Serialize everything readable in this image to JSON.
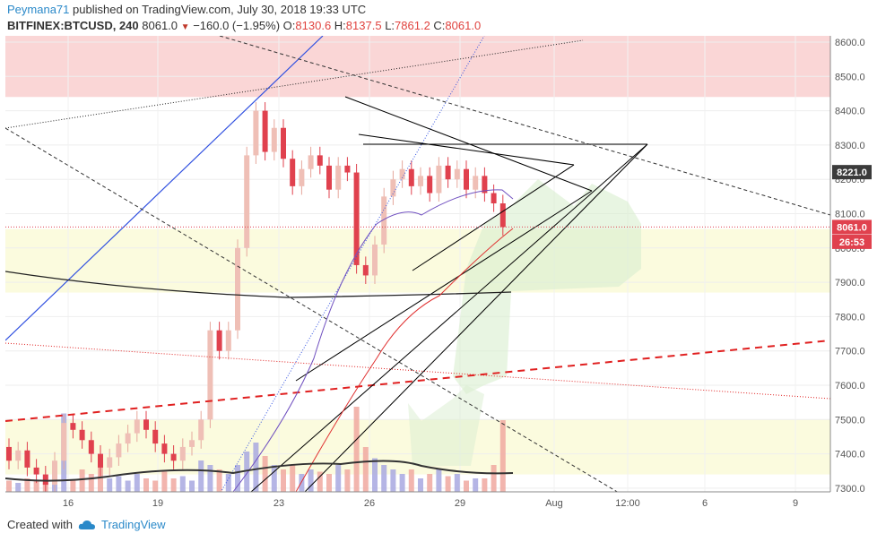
{
  "header": {
    "author": "Peymana71",
    "published_text": "published on TradingView.com, July 30, 2018 19:33 UTC",
    "symbol": "BITFINEX:BTCUSD, 240",
    "last": "8061.0",
    "change": "−160.0 (−1.95%)",
    "o_label": "O:",
    "o_value": "8130.6",
    "h_label": "H:",
    "h_value": "8137.5",
    "l_label": "L:",
    "l_value": "7861.2",
    "c_label": "C:",
    "c_value": "8061.0"
  },
  "footer": {
    "created_with": "Created with",
    "brand": "TradingView"
  },
  "colors": {
    "up": "#efbfb6",
    "down": "#e0414e",
    "resist_zone": "#f8c8c8",
    "support_zone": "#fbfbde",
    "price_label": "#e0414e",
    "ema_label": "#3b3b3b"
  },
  "chart_data": {
    "type": "candlestick",
    "y_axis_ticks": [
      "8600.0",
      "8500.0",
      "8400.0",
      "8300.0",
      "8200.0",
      "8100.0",
      "8000.0",
      "7900.0",
      "7800.0",
      "7700.0",
      "7600.0",
      "7500.0",
      "7400.0",
      "7300.0"
    ],
    "x_axis_ticks": [
      "16",
      "19",
      "23",
      "26",
      "29",
      "Aug",
      "12:00",
      "6",
      "9"
    ],
    "ylim": [
      7280,
      8630
    ],
    "price_labels": [
      {
        "text": "8221.0",
        "value": 8221,
        "kind": "ema"
      },
      {
        "text": "8061.0",
        "value": 8061,
        "kind": "price"
      },
      {
        "text": "26:53",
        "value": 8018,
        "kind": "timer"
      }
    ],
    "candles": [
      {
        "o": 7420,
        "c": 7380
      },
      {
        "o": 7380,
        "c": 7410
      },
      {
        "o": 7410,
        "c": 7360
      },
      {
        "o": 7360,
        "c": 7340
      },
      {
        "o": 7340,
        "c": 7310
      },
      {
        "o": 7310,
        "c": 7380
      },
      {
        "o": 7380,
        "c": 7490
      },
      {
        "o": 7490,
        "c": 7470
      },
      {
        "o": 7470,
        "c": 7440
      },
      {
        "o": 7440,
        "c": 7400
      },
      {
        "o": 7400,
        "c": 7360
      },
      {
        "o": 7360,
        "c": 7390
      },
      {
        "o": 7390,
        "c": 7430
      },
      {
        "o": 7430,
        "c": 7460
      },
      {
        "o": 7460,
        "c": 7500
      },
      {
        "o": 7500,
        "c": 7470
      },
      {
        "o": 7470,
        "c": 7430
      },
      {
        "o": 7430,
        "c": 7400
      },
      {
        "o": 7400,
        "c": 7380
      },
      {
        "o": 7380,
        "c": 7420
      },
      {
        "o": 7420,
        "c": 7440
      },
      {
        "o": 7440,
        "c": 7500
      },
      {
        "o": 7500,
        "c": 7760
      },
      {
        "o": 7760,
        "c": 7700
      },
      {
        "o": 7700,
        "c": 7760
      },
      {
        "o": 7760,
        "c": 8000
      },
      {
        "o": 8000,
        "c": 8270
      },
      {
        "o": 8270,
        "c": 8400
      },
      {
        "o": 8400,
        "c": 8280
      },
      {
        "o": 8280,
        "c": 8350
      },
      {
        "o": 8350,
        "c": 8260
      },
      {
        "o": 8260,
        "c": 8180
      },
      {
        "o": 8180,
        "c": 8230
      },
      {
        "o": 8230,
        "c": 8270
      },
      {
        "o": 8270,
        "c": 8240
      },
      {
        "o": 8240,
        "c": 8170
      },
      {
        "o": 8170,
        "c": 8240
      },
      {
        "o": 8240,
        "c": 8220
      },
      {
        "o": 8220,
        "c": 7950
      },
      {
        "o": 7950,
        "c": 7920
      },
      {
        "o": 7920,
        "c": 8010
      },
      {
        "o": 8010,
        "c": 8150
      },
      {
        "o": 8150,
        "c": 8200
      },
      {
        "o": 8200,
        "c": 8230
      },
      {
        "o": 8230,
        "c": 8180
      },
      {
        "o": 8180,
        "c": 8210
      },
      {
        "o": 8210,
        "c": 8160
      },
      {
        "o": 8160,
        "c": 8240
      },
      {
        "o": 8240,
        "c": 8200
      },
      {
        "o": 8200,
        "c": 8230
      },
      {
        "o": 8230,
        "c": 8170
      },
      {
        "o": 8170,
        "c": 8210
      },
      {
        "o": 8210,
        "c": 8160
      },
      {
        "o": 8160,
        "c": 8130
      },
      {
        "o": 8130,
        "c": 8061
      }
    ],
    "volume": [
      0.05,
      0.04,
      0.06,
      0.05,
      0.04,
      0.07,
      0.35,
      0.05,
      0.1,
      0.08,
      0.12,
      0.06,
      0.07,
      0.05,
      0.08,
      0.06,
      0.05,
      0.09,
      0.06,
      0.07,
      0.05,
      0.14,
      0.12,
      0.1,
      0.08,
      0.12,
      0.18,
      0.22,
      0.16,
      0.12,
      0.1,
      0.12,
      0.08,
      0.1,
      0.09,
      0.08,
      0.12,
      0.1,
      0.38,
      0.2,
      0.15,
      0.12,
      0.1,
      0.08,
      0.1,
      0.06,
      0.08,
      0.1,
      0.07,
      0.08,
      0.05,
      0.06,
      0.06,
      0.12,
      0.32
    ]
  }
}
